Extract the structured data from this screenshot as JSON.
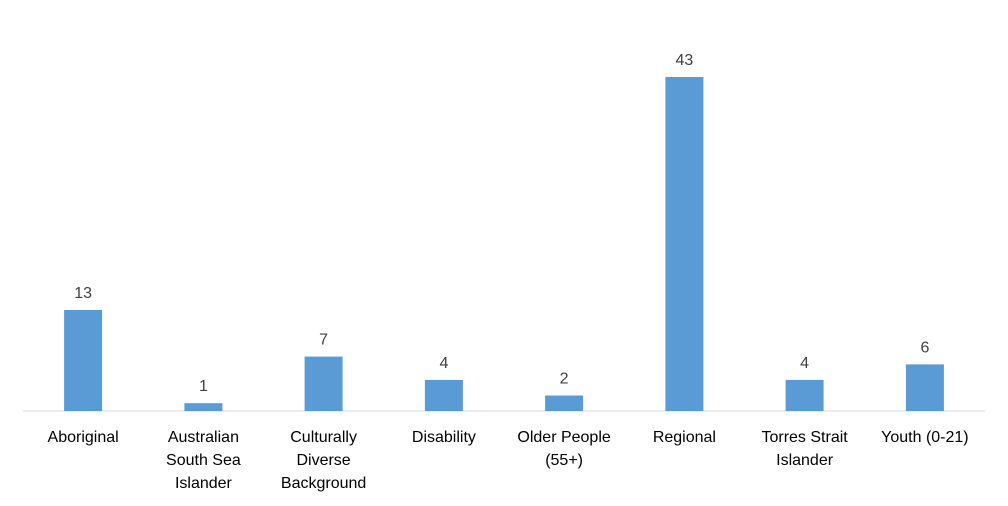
{
  "chart_data": {
    "type": "bar",
    "categories": [
      [
        "Aboriginal"
      ],
      [
        "Australian",
        "South Sea",
        "Islander"
      ],
      [
        "Culturally",
        "Diverse",
        "Background"
      ],
      [
        "Disability"
      ],
      [
        "Older People",
        "(55+)"
      ],
      [
        "Regional"
      ],
      [
        "Torres Strait",
        "Islander"
      ],
      [
        "Youth (0-21)"
      ]
    ],
    "values": [
      13,
      1,
      7,
      4,
      2,
      43,
      4,
      6
    ],
    "data_labels": true,
    "title": "",
    "xlabel": "",
    "ylabel": "",
    "ylim": [
      0,
      43
    ],
    "grid": false,
    "legend": "none",
    "colors": {
      "bar": "#5b9bd5",
      "axis": "#d9d9d9",
      "data_label": "#404040",
      "tick_label": "#000000"
    }
  }
}
